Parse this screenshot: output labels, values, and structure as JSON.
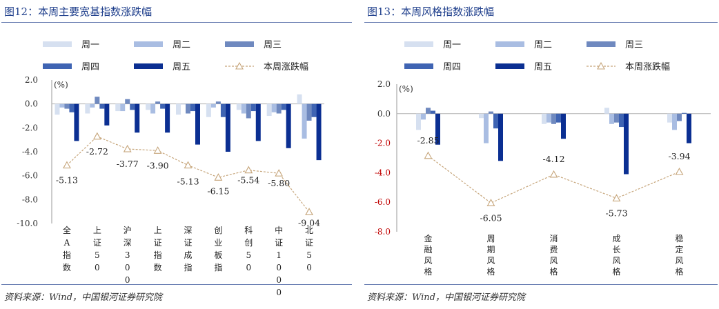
{
  "source_text": "资料来源：Wind，中国银河证券研究院",
  "legend_labels": [
    "周一",
    "周二",
    "周三",
    "周四",
    "周五",
    "本周涨跌幅"
  ],
  "colors": {
    "days": [
      "#d6e0f0",
      "#a9bde2",
      "#6f89bf",
      "#3f64b3",
      "#0b2f92"
    ],
    "line": "#c6a57a",
    "title": "#1f3f8c",
    "rule": "#6b7fb3"
  },
  "chart_data": [
    {
      "type": "bar",
      "title": "图12：本周主要宽基指数涨跌幅",
      "unit_label": "(%)",
      "ylim": [
        -10,
        2
      ],
      "yticks": [
        "2.0",
        "0.0",
        "-2.0",
        "-4.0",
        "-6.0",
        "-8.0",
        "-10.0"
      ],
      "categories": [
        "全A指数",
        "上证50",
        "沪深300",
        "上证指数",
        "深证成指",
        "创业板指",
        "科创50",
        "中证1000",
        "北证50"
      ],
      "series": [
        {
          "name": "周一",
          "values": [
            -0.9,
            -0.8,
            -0.6,
            -0.5,
            -0.9,
            -1.1,
            -0.5,
            -1.0,
            0.8
          ]
        },
        {
          "name": "周二",
          "values": [
            -0.3,
            -0.3,
            -0.6,
            -0.8,
            0.0,
            -0.3,
            -0.8,
            -0.7,
            -2.9
          ]
        },
        {
          "name": "周三",
          "values": [
            -0.4,
            0.6,
            0.4,
            0.2,
            -0.8,
            0.2,
            -1.2,
            -0.8,
            -1.4
          ]
        },
        {
          "name": "周四",
          "values": [
            -0.7,
            -0.4,
            -0.5,
            -0.4,
            -0.6,
            -1.1,
            -0.6,
            -0.5,
            -1.1
          ]
        },
        {
          "name": "周五",
          "values": [
            -3.1,
            -1.8,
            -2.4,
            -2.4,
            -3.4,
            -4.0,
            -3.1,
            -3.7,
            -4.7
          ]
        },
        {
          "name": "本周涨跌幅",
          "type": "line",
          "values": [
            -5.13,
            -2.72,
            -3.77,
            -3.9,
            -5.13,
            -6.15,
            -5.54,
            -5.8,
            -9.04
          ]
        }
      ],
      "data_labels": [
        "-5.13",
        "-2.72",
        "-3.77",
        "-3.90",
        "-5.13",
        "-6.15",
        "-5.54",
        "-5.80",
        "-9.04"
      ]
    },
    {
      "type": "bar",
      "title": "图13：本周风格指数涨跌幅",
      "unit_label": "(%)",
      "ylim": [
        -8,
        2
      ],
      "yticks": [
        "2.0",
        "0.0",
        "-2.0",
        "-4.0",
        "-6.0",
        "-8.0"
      ],
      "categories": [
        "金融风格",
        "周期风格",
        "消费风格",
        "成长风格",
        "稳定风格"
      ],
      "series": [
        {
          "name": "周一",
          "values": [
            -1.1,
            -0.3,
            -0.7,
            0.4,
            -0.6
          ]
        },
        {
          "name": "周二",
          "values": [
            -0.4,
            -2.0,
            -0.6,
            -0.7,
            -1.1
          ]
        },
        {
          "name": "周三",
          "values": [
            0.4,
            0.15,
            -0.7,
            -0.6,
            -0.5
          ]
        },
        {
          "name": "周四",
          "values": [
            0.2,
            -1.0,
            -0.6,
            -0.9,
            0.05
          ]
        },
        {
          "name": "周五",
          "values": [
            -2.1,
            -3.2,
            -1.7,
            -4.1,
            -2.0
          ]
        },
        {
          "name": "本周涨跌幅",
          "type": "line",
          "values": [
            -2.85,
            -6.05,
            -4.12,
            -5.73,
            -3.94
          ]
        }
      ],
      "data_labels": [
        "-2.85",
        "-6.05",
        "-4.12",
        "-5.73",
        "-3.94"
      ]
    }
  ]
}
